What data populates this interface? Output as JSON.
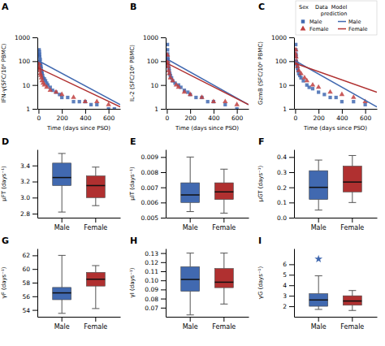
{
  "chart_data": [
    {
      "type": "scatter",
      "title": "A",
      "x_label": "Time (days since PSO)",
      "y_label": "IFN-γ(SFC/10⁶ PBMC)",
      "log": "y",
      "xlim": [
        -10,
        700
      ],
      "xticks": [
        0,
        200,
        400,
        600
      ],
      "ylim": [
        1,
        1000
      ],
      "yticks": [
        1,
        10,
        100,
        1000
      ],
      "series": [
        {
          "type": "scatter",
          "marker": "square",
          "color": "#4169B0",
          "x": [
            3,
            5,
            6,
            7,
            8,
            10,
            12,
            14,
            15,
            18,
            20,
            22,
            25,
            28,
            30,
            35,
            40,
            50,
            60,
            70,
            80,
            100,
            120,
            150,
            180,
            200,
            250,
            300,
            350,
            400,
            450,
            500,
            600,
            650
          ],
          "values": [
            80,
            300,
            180,
            250,
            200,
            150,
            100,
            120,
            80,
            70,
            60,
            50,
            40,
            35,
            30,
            25,
            20,
            18,
            15,
            12,
            10,
            8,
            6,
            5,
            4,
            3,
            3,
            2,
            2,
            2,
            1.5,
            1.5,
            1,
            1
          ]
        },
        {
          "type": "scatter",
          "marker": "triangle",
          "color": "#C04040",
          "x": [
            3,
            5,
            7,
            10,
            15,
            20,
            25,
            30,
            40,
            50,
            70,
            100,
            150,
            200,
            300,
            400,
            500,
            600
          ],
          "values": [
            60,
            80,
            50,
            40,
            30,
            25,
            20,
            15,
            12,
            10,
            8,
            6,
            5,
            4,
            3,
            2,
            2,
            1.5
          ]
        },
        {
          "type": "line",
          "color": "#4169B0",
          "x": [
            0,
            5,
            700
          ],
          "values": [
            100,
            100,
            1.5
          ]
        },
        {
          "type": "line",
          "color": "#B03030",
          "x": [
            0,
            5,
            700
          ],
          "values": [
            50,
            50,
            1.2
          ]
        }
      ]
    },
    {
      "type": "scatter",
      "title": "B",
      "x_label": "Time (days since PSO)",
      "y_label": "IL-2 (SFC/10⁶ PBMC)",
      "log": "y",
      "xlim": [
        -10,
        700
      ],
      "xticks": [
        0,
        200,
        400,
        600
      ],
      "ylim": [
        1,
        1000
      ],
      "yticks": [
        1,
        10,
        100,
        1000
      ],
      "series": [
        {
          "type": "scatter",
          "marker": "square",
          "color": "#4169B0",
          "x": [
            3,
            5,
            6,
            7,
            8,
            10,
            12,
            15,
            18,
            20,
            25,
            30,
            40,
            50,
            70,
            100,
            120,
            150,
            180,
            200,
            250,
            300,
            350,
            400,
            500,
            600
          ],
          "values": [
            100,
            500,
            300,
            200,
            150,
            120,
            80,
            60,
            50,
            40,
            30,
            25,
            20,
            15,
            12,
            10,
            8,
            6,
            5,
            4,
            3,
            3,
            2,
            2,
            1.5,
            1
          ]
        },
        {
          "type": "scatter",
          "marker": "triangle",
          "color": "#C04040",
          "x": [
            3,
            5,
            7,
            10,
            15,
            20,
            30,
            50,
            80,
            100,
            150,
            200,
            300,
            400,
            500,
            600
          ],
          "values": [
            80,
            180,
            100,
            60,
            40,
            30,
            20,
            15,
            10,
            8,
            5,
            4,
            3,
            2,
            2,
            1.5
          ]
        },
        {
          "type": "line",
          "color": "#4169B0",
          "x": [
            0,
            5,
            700
          ],
          "values": [
            120,
            120,
            1.5
          ]
        },
        {
          "type": "line",
          "color": "#B03030",
          "x": [
            0,
            5,
            700
          ],
          "values": [
            80,
            80,
            1.5
          ]
        }
      ]
    },
    {
      "type": "scatter",
      "title": "C",
      "x_label": "Time (days since PSO)",
      "y_label": "GzmB (SFC/10⁶ PBMC)",
      "log": "y",
      "xlim": [
        -10,
        700
      ],
      "xticks": [
        0,
        200,
        400,
        600
      ],
      "ylim": [
        1,
        1000
      ],
      "yticks": [
        1,
        10,
        100,
        1000
      ],
      "legend": "top",
      "legend_title": "Sex    Data  Model\n             prediction",
      "series": [
        {
          "name": "Male",
          "type": "scatter",
          "marker": "square",
          "color": "#4169B0",
          "x": [
            3,
            5,
            6,
            7,
            8,
            10,
            12,
            15,
            18,
            20,
            25,
            30,
            40,
            50,
            70,
            100,
            120,
            150,
            200,
            250,
            300,
            350,
            400,
            500,
            600
          ],
          "values": [
            100,
            500,
            300,
            200,
            150,
            100,
            80,
            70,
            60,
            50,
            40,
            30,
            25,
            20,
            15,
            10,
            8,
            7,
            5,
            4,
            3,
            3,
            2,
            2,
            1.5
          ]
        },
        {
          "name": "Female",
          "type": "scatter",
          "marker": "triangle",
          "color": "#C04040",
          "x": [
            3,
            5,
            7,
            10,
            15,
            20,
            30,
            50,
            80,
            100,
            150,
            200,
            300,
            400,
            500,
            600
          ],
          "values": [
            200,
            300,
            150,
            100,
            80,
            60,
            40,
            30,
            20,
            15,
            10,
            8,
            5,
            4,
            3,
            2
          ]
        },
        {
          "name": "Male",
          "type": "line",
          "color": "#4169B0",
          "x": [
            0,
            5,
            700
          ],
          "values": [
            100,
            100,
            1.2
          ]
        },
        {
          "name": "Female",
          "type": "line",
          "color": "#B03030",
          "x": [
            0,
            5,
            700
          ],
          "values": [
            80,
            80,
            5.0
          ]
        }
      ]
    },
    {
      "type": "box",
      "title": "D",
      "y_label": "μFT (days⁻¹)",
      "categories": [
        "Male",
        "Female"
      ],
      "colors": [
        "#4169B0",
        "#B03030"
      ],
      "ylim": [
        2.75,
        3.6
      ],
      "yticks": [
        2.8,
        {
          "value": 3.0,
          "label": "3.0"
        },
        3.2,
        3.4
      ],
      "boxes": [
        {
          "whislo": 2.82,
          "q1": 3.15,
          "med": 3.25,
          "q3": 3.43,
          "whishi": 3.55
        },
        {
          "whislo": 2.9,
          "q1": 3.0,
          "med": 3.15,
          "q3": 3.27,
          "whishi": 3.38
        }
      ]
    },
    {
      "type": "box",
      "title": "E",
      "y_label": "μIT (days⁻¹)",
      "categories": [
        "Male",
        "Female"
      ],
      "colors": [
        "#4169B0",
        "#B03030"
      ],
      "ylim": [
        0.005,
        0.0095
      ],
      "yticks": [
        0.005,
        0.006,
        0.007,
        0.008,
        0.009
      ],
      "boxes": [
        {
          "whislo": 0.0054,
          "q1": 0.006,
          "med": 0.0065,
          "q3": 0.0073,
          "whishi": 0.009
        },
        {
          "whislo": 0.0053,
          "q1": 0.0062,
          "med": 0.0067,
          "q3": 0.0073,
          "whishi": 0.0082
        }
      ]
    },
    {
      "type": "box",
      "title": "F",
      "y_label": "μGT (days⁻¹)",
      "categories": [
        "Male",
        "Female"
      ],
      "colors": [
        "#4169B0",
        "#B03030"
      ],
      "ylim": [
        0.0,
        0.45
      ],
      "yticks": [
        {
          "value": 0.0,
          "label": "0.0"
        },
        0.1,
        0.2,
        0.3,
        0.4
      ],
      "boxes": [
        {
          "whislo": 0.05,
          "q1": 0.12,
          "med": 0.2,
          "q3": 0.31,
          "whishi": 0.38
        },
        {
          "whislo": 0.1,
          "q1": 0.17,
          "med": 0.235,
          "q3": 0.34,
          "whishi": 0.41
        }
      ]
    },
    {
      "type": "box",
      "title": "G",
      "y_label": "γF (days⁻¹)",
      "categories": [
        "Male",
        "Female"
      ],
      "colors": [
        "#4169B0",
        "#B03030"
      ],
      "ylim": [
        53,
        63
      ],
      "yticks": [
        54,
        56,
        58,
        60,
        62
      ],
      "boxes": [
        {
          "whislo": 53.5,
          "q1": 55.5,
          "med": 56.5,
          "q3": 57.3,
          "whishi": 62.0
        },
        {
          "whislo": 54.2,
          "q1": 57.5,
          "med": 58.5,
          "q3": 59.5,
          "whishi": 60.5
        }
      ]
    },
    {
      "type": "box",
      "title": "H",
      "y_label": "γI (days⁻¹)",
      "categories": [
        "Male",
        "Female"
      ],
      "colors": [
        "#4169B0",
        "#B03030"
      ],
      "ylim": [
        0.06,
        0.135
      ],
      "yticks": [
        0.07,
        0.08,
        0.09,
        {
          "value": 0.1,
          "label": "0.10"
        },
        0.11,
        0.12,
        0.13
      ],
      "boxes": [
        {
          "whislo": 0.062,
          "q1": 0.088,
          "med": 0.101,
          "q3": 0.115,
          "whishi": 0.13
        },
        {
          "whislo": 0.074,
          "q1": 0.092,
          "med": 0.098,
          "q3": 0.113,
          "whishi": 0.13
        }
      ]
    },
    {
      "type": "box",
      "title": "I",
      "y_label": "γG (days⁻¹)",
      "categories": [
        "Male",
        "Female"
      ],
      "colors": [
        "#4169B0",
        "#B03030"
      ],
      "ylim": [
        1.0,
        7.5
      ],
      "yticks": [
        2,
        3,
        4,
        5,
        6
      ],
      "boxes": [
        {
          "whislo": 1.7,
          "q1": 2.0,
          "med": 2.6,
          "q3": 3.2,
          "whishi": 4.9,
          "outliers": [
            6.5
          ]
        },
        {
          "whislo": 1.6,
          "q1": 2.1,
          "med": 2.5,
          "q3": 3.0,
          "whishi": 3.5
        }
      ]
    }
  ]
}
